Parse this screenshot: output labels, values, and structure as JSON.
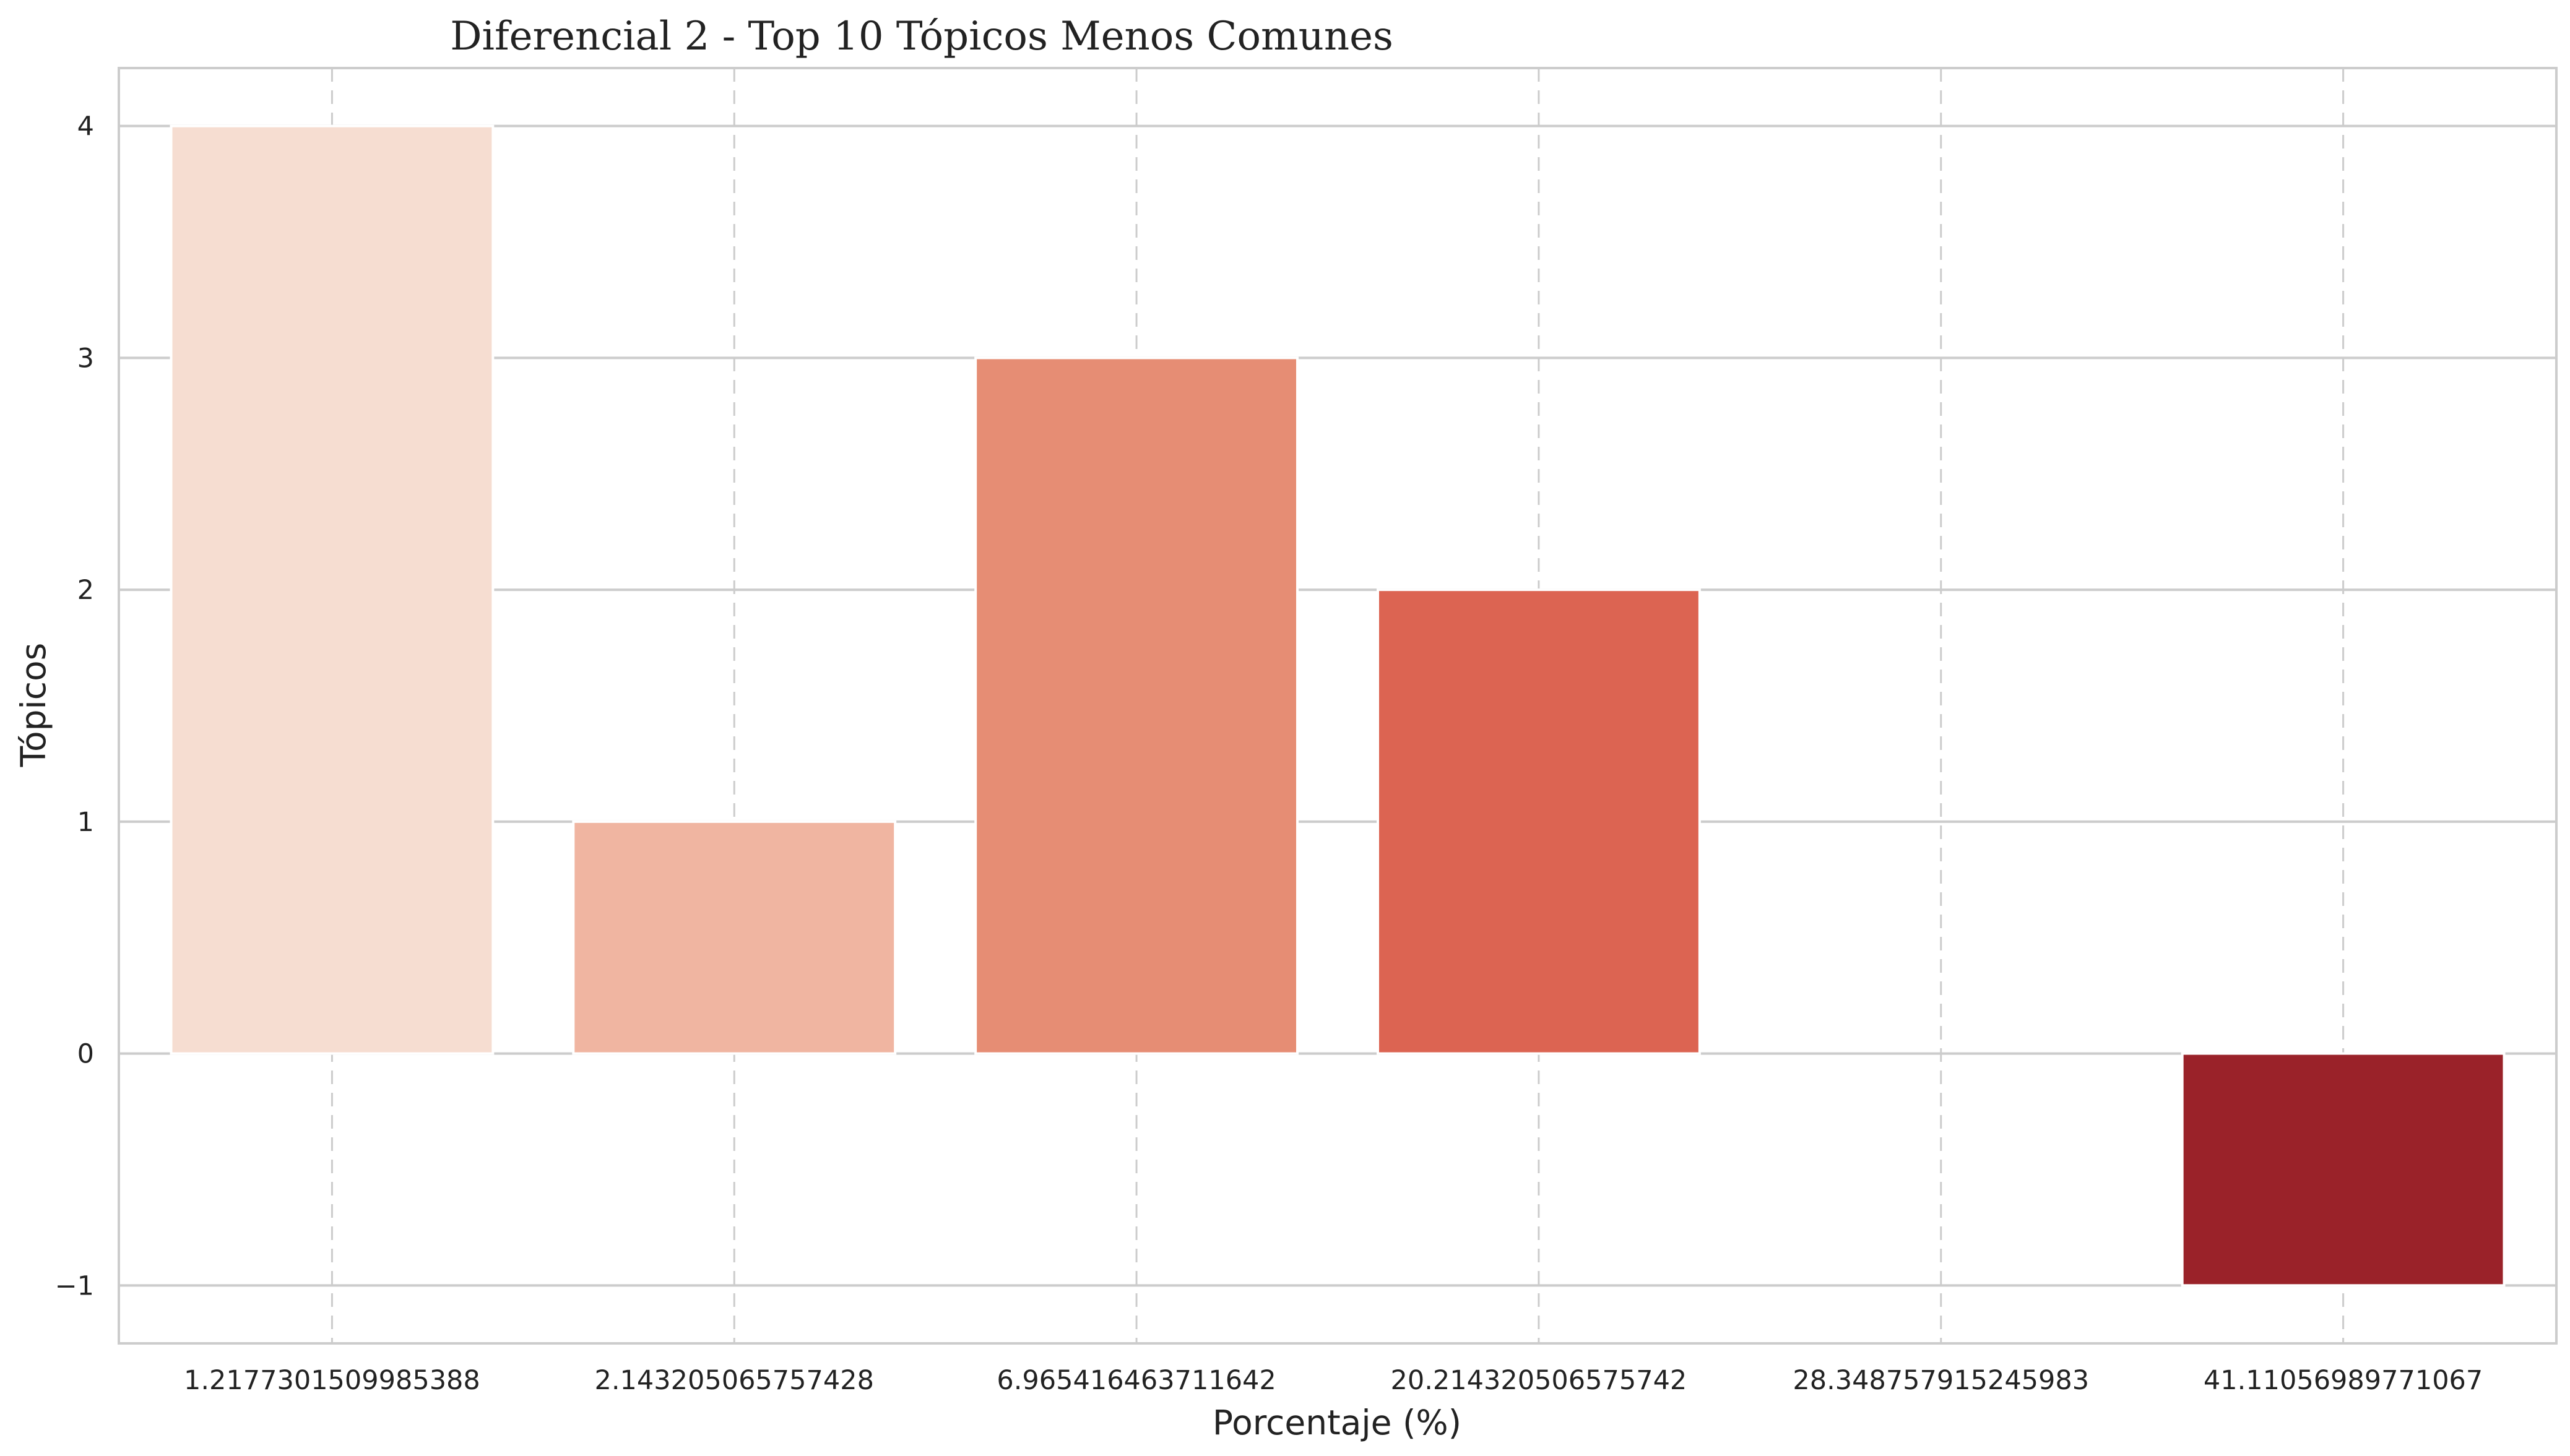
{
  "chart_data": {
    "type": "bar",
    "title": "Diferencial 2 - Top 10 Tópicos Menos Comunes",
    "xlabel": "Porcentaje (%)",
    "ylabel": "Tópicos",
    "categories": [
      "1.2177301509985388",
      "2.143205065757428",
      "6.965416463711642",
      "20.214320506575742",
      "28.348757915245983",
      "41.11056989771067"
    ],
    "values": [
      4,
      1,
      3,
      2,
      0,
      -1
    ],
    "colors": [
      "#f6ddd1",
      "#f0b5a1",
      "#e68d74",
      "#dc6452",
      "#c73a32",
      "#9a2229"
    ],
    "yticks": [
      -1,
      0,
      1,
      2,
      3,
      4
    ],
    "ytick_labels": [
      "−1",
      "0",
      "1",
      "2",
      "3",
      "4"
    ],
    "ylim": [
      -1.25,
      4.25
    ],
    "grid": true,
    "gridline_color": "#cccccc",
    "vertical_grid_style": "dashed"
  }
}
